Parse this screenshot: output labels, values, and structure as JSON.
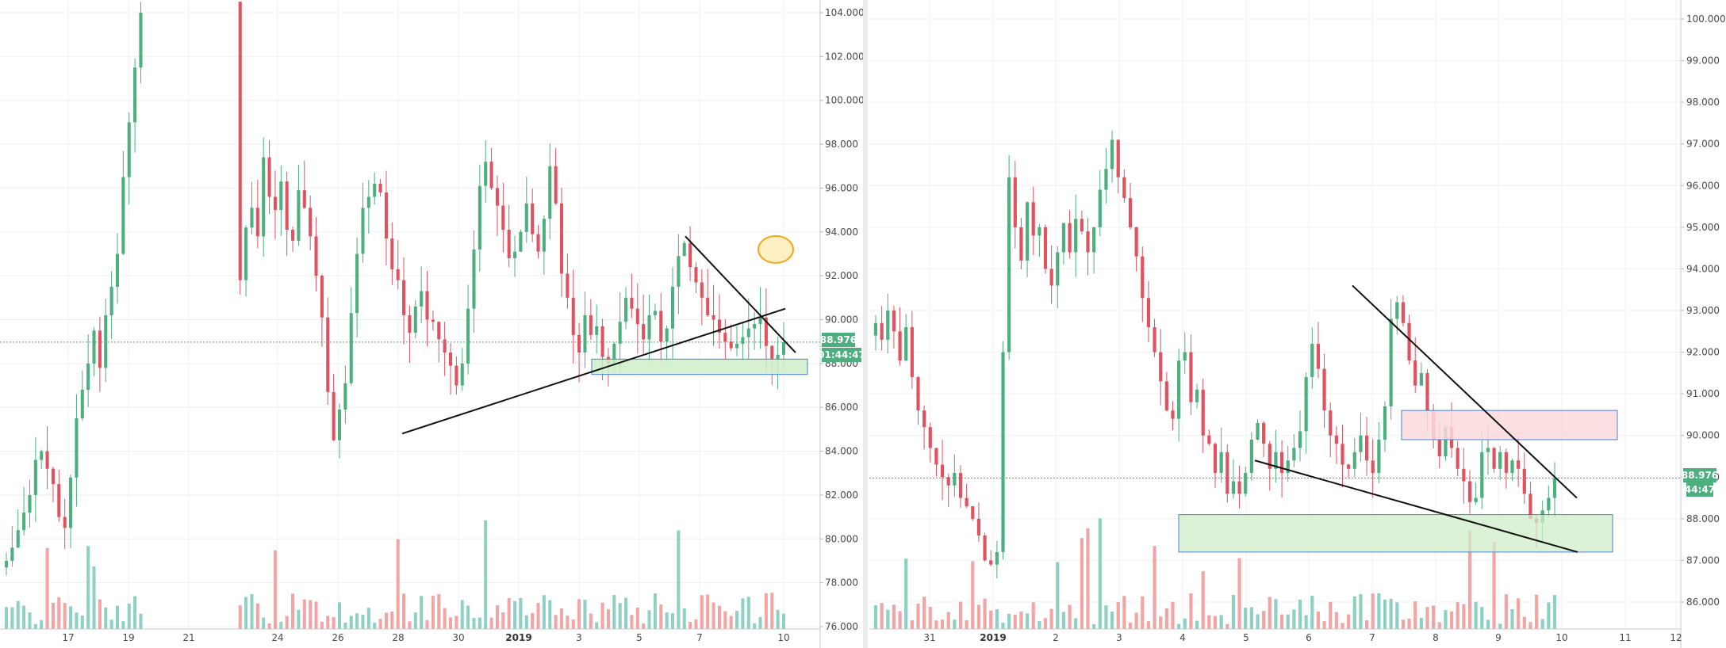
{
  "chart_data": [
    {
      "type": "candlestick",
      "name": "left-panel",
      "y_ticks": [
        "104.000",
        "102.000",
        "100.000",
        "98.000",
        "96.000",
        "94.000",
        "92.000",
        "90.000",
        "88.000",
        "86.000",
        "84.000",
        "82.000",
        "80.000",
        "78.000",
        "76.000"
      ],
      "ylim": [
        75.8,
        104.5
      ],
      "x_ticks": [
        "17",
        "19",
        "21",
        "24",
        "26",
        "28",
        "30",
        "2019",
        "3",
        "5",
        "7",
        "10"
      ],
      "last_price_label": "88.976",
      "countdown_label": "01:44:47",
      "last_price": 88.976,
      "annotations": {
        "resistance_line": {
          "from": {
            "x": "7",
            "y": 93.8
          },
          "to": {
            "x": "10+",
            "y": 88.5
          }
        },
        "support_line": {
          "from": {
            "x": "28",
            "y": 84.8
          },
          "to": {
            "x": "10",
            "y": 90.5
          }
        },
        "support_zone": {
          "ymin": 87.5,
          "ymax": 88.2,
          "color": "#cfeec8"
        },
        "highlight": {
          "shape": "ellipse",
          "y": 93.2,
          "color": "#f5a623"
        }
      },
      "colors": {
        "up": "#4caf7d",
        "down": "#e05260",
        "vol_up": "#8fd0c5",
        "vol_down": "#f2a5a5"
      }
    },
    {
      "type": "candlestick",
      "name": "right-panel",
      "y_ticks": [
        "100.000",
        "99.000",
        "98.000",
        "97.000",
        "96.000",
        "95.000",
        "94.000",
        "93.000",
        "92.000",
        "91.000",
        "90.000",
        "89.000",
        "88.000",
        "87.000",
        "86.000"
      ],
      "ylim": [
        85.4,
        100.4
      ],
      "x_ticks": [
        "31",
        "2019",
        "2",
        "3",
        "4",
        "5",
        "6",
        "7",
        "8",
        "9",
        "10",
        "11",
        "12"
      ],
      "last_price_label": "88.976",
      "countdown_label": "44:47",
      "last_price": 88.976,
      "annotations": {
        "resistance_line": {
          "from": {
            "x": "6.7",
            "y": 93.6
          },
          "to": {
            "x": "10.5",
            "y": 88.5
          }
        },
        "support_line": {
          "from": {
            "x": "5.1",
            "y": 89.4
          },
          "to": {
            "x": "10.5",
            "y": 87.2
          }
        },
        "resistance_zone": {
          "ymin": 89.9,
          "ymax": 90.6,
          "color": "#fbd9dc"
        },
        "support_zone": {
          "ymin": 87.2,
          "ymax": 88.1,
          "color": "#cfeec8"
        }
      },
      "colors": {
        "up": "#4caf7d",
        "down": "#e05260",
        "vol_up": "#8fd0c5",
        "vol_down": "#f2a5a5"
      }
    }
  ]
}
